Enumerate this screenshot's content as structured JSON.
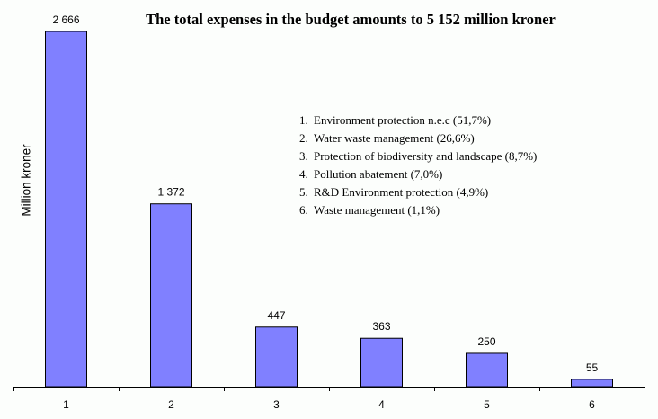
{
  "chart_data": {
    "type": "bar",
    "title": "The total expenses in the budget amounts to 5 152 million kroner",
    "xlabel": "",
    "ylabel": "Million kroner",
    "categories": [
      "1",
      "2",
      "3",
      "4",
      "5",
      "6"
    ],
    "values": [
      2666,
      1372,
      447,
      363,
      250,
      55
    ],
    "data_labels": [
      "2 666",
      "1 372",
      "447",
      "363",
      "250",
      "55"
    ],
    "ylim": [
      0,
      2666
    ],
    "grid": false,
    "bar_color": "#8080ff",
    "legend": [
      {
        "num": "1.",
        "text": "Environment protection n.e.c (51,7%)"
      },
      {
        "num": "2.",
        "text": "Water waste management (26,6%)"
      },
      {
        "num": "3.",
        "text": "Protection of biodiversity and landscape (8,7%)"
      },
      {
        "num": "4.",
        "text": "Pollution abatement (7,0%)"
      },
      {
        "num": "5.",
        "text": "R&D Environment protection (4,9%)"
      },
      {
        "num": "6.",
        "text": "Waste management (1,1%)"
      }
    ]
  }
}
